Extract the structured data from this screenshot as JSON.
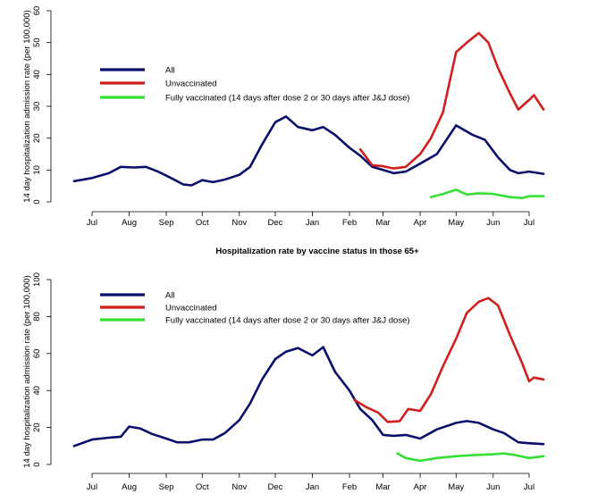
{
  "chart_data": [
    {
      "type": "line",
      "title": "",
      "ylabel": "14 day hospitalization admission rate (per 100,000)",
      "xlabel": "",
      "ylim": [
        0,
        60
      ],
      "yticks": [
        0,
        10,
        20,
        30,
        40,
        50,
        60
      ],
      "xlim": [
        "2020-06-16",
        "2021-07-14"
      ],
      "xticks": [
        {
          "date": "2020-07-01",
          "label": "Jul"
        },
        {
          "date": "2020-08-01",
          "label": "Aug"
        },
        {
          "date": "2020-09-01",
          "label": "Sep"
        },
        {
          "date": "2020-10-01",
          "label": "Oct"
        },
        {
          "date": "2020-11-01",
          "label": "Nov"
        },
        {
          "date": "2020-12-01",
          "label": "Dec"
        },
        {
          "date": "2021-01-01",
          "label": "Jan"
        },
        {
          "date": "2021-02-01",
          "label": "Feb"
        },
        {
          "date": "2021-03-01",
          "label": "Mar"
        },
        {
          "date": "2021-04-01",
          "label": "Apr"
        },
        {
          "date": "2021-05-01",
          "label": "May"
        },
        {
          "date": "2021-06-01",
          "label": "Jun"
        },
        {
          "date": "2021-07-01",
          "label": "Jul"
        }
      ],
      "grid": false,
      "legend_placement": "top-left",
      "series": [
        {
          "name": "All",
          "color": "#0a0f6b",
          "points": [
            [
              "2020-06-16",
              6.5
            ],
            [
              "2020-07-01",
              7.5
            ],
            [
              "2020-07-15",
              9
            ],
            [
              "2020-07-25",
              11
            ],
            [
              "2020-08-05",
              10.8
            ],
            [
              "2020-08-15",
              11
            ],
            [
              "2020-08-25",
              9.5
            ],
            [
              "2020-09-05",
              7.5
            ],
            [
              "2020-09-15",
              5.5
            ],
            [
              "2020-09-22",
              5.2
            ],
            [
              "2020-10-01",
              6.8
            ],
            [
              "2020-10-10",
              6.2
            ],
            [
              "2020-10-20",
              7
            ],
            [
              "2020-11-01",
              8.5
            ],
            [
              "2020-11-10",
              11
            ],
            [
              "2020-11-20",
              18
            ],
            [
              "2020-12-01",
              25
            ],
            [
              "2020-12-10",
              26.8
            ],
            [
              "2020-12-20",
              23.5
            ],
            [
              "2021-01-01",
              22.5
            ],
            [
              "2021-01-10",
              23.5
            ],
            [
              "2021-01-20",
              21
            ],
            [
              "2021-02-01",
              17
            ],
            [
              "2021-02-10",
              14.5
            ],
            [
              "2021-02-20",
              11
            ],
            [
              "2021-03-01",
              10
            ],
            [
              "2021-03-10",
              9
            ],
            [
              "2021-03-20",
              9.5
            ],
            [
              "2021-04-01",
              12
            ],
            [
              "2021-04-15",
              15
            ],
            [
              "2021-05-01",
              24
            ],
            [
              "2021-05-15",
              21
            ],
            [
              "2021-05-25",
              19.5
            ],
            [
              "2021-06-05",
              14
            ],
            [
              "2021-06-15",
              10
            ],
            [
              "2021-06-22",
              9
            ],
            [
              "2021-07-01",
              9.5
            ],
            [
              "2021-07-13",
              8.8
            ]
          ]
        },
        {
          "name": "Unvaccinated",
          "color": "#d11f1f",
          "points": [
            [
              "2021-02-10",
              16.5
            ],
            [
              "2021-02-20",
              11.5
            ],
            [
              "2021-03-01",
              11.2
            ],
            [
              "2021-03-10",
              10.5
            ],
            [
              "2021-03-20",
              11
            ],
            [
              "2021-04-01",
              15
            ],
            [
              "2021-04-10",
              20
            ],
            [
              "2021-04-20",
              28
            ],
            [
              "2021-05-01",
              47
            ],
            [
              "2021-05-10",
              50
            ],
            [
              "2021-05-20",
              53
            ],
            [
              "2021-05-28",
              50
            ],
            [
              "2021-06-05",
              42
            ],
            [
              "2021-06-15",
              34
            ],
            [
              "2021-06-22",
              29
            ],
            [
              "2021-07-01",
              32
            ],
            [
              "2021-07-05",
              33.5
            ],
            [
              "2021-07-13",
              29
            ]
          ]
        },
        {
          "name": "Fully vaccinated (14 days after dose 2 or 30 days after J&J dose)",
          "color": "#33e033",
          "points": [
            [
              "2021-04-10",
              1.5
            ],
            [
              "2021-04-20",
              2.5
            ],
            [
              "2021-05-01",
              3.8
            ],
            [
              "2021-05-10",
              2.3
            ],
            [
              "2021-05-20",
              2.7
            ],
            [
              "2021-06-01",
              2.5
            ],
            [
              "2021-06-15",
              1.5
            ],
            [
              "2021-06-25",
              1.2
            ],
            [
              "2021-07-01",
              1.8
            ],
            [
              "2021-07-13",
              1.8
            ]
          ]
        }
      ]
    },
    {
      "type": "line",
      "title": "Hospitalization rate by vaccine status in those 65+",
      "ylabel": "14 day hospitalization admission rate (per 100,000)",
      "xlabel": "",
      "ylim": [
        0,
        100
      ],
      "yticks": [
        0,
        20,
        40,
        60,
        80,
        100
      ],
      "xlim": [
        "2020-06-16",
        "2021-07-14"
      ],
      "xticks": [
        {
          "date": "2020-07-01",
          "label": "Jul"
        },
        {
          "date": "2020-08-01",
          "label": "Aug"
        },
        {
          "date": "2020-09-01",
          "label": "Sep"
        },
        {
          "date": "2020-10-01",
          "label": "Oct"
        },
        {
          "date": "2020-11-01",
          "label": "Nov"
        },
        {
          "date": "2020-12-01",
          "label": "Dec"
        },
        {
          "date": "2021-01-01",
          "label": "Jan"
        },
        {
          "date": "2021-02-01",
          "label": "Feb"
        },
        {
          "date": "2021-03-01",
          "label": "Mar"
        },
        {
          "date": "2021-04-01",
          "label": "Apr"
        },
        {
          "date": "2021-05-01",
          "label": "May"
        },
        {
          "date": "2021-06-01",
          "label": "Jun"
        },
        {
          "date": "2021-07-01",
          "label": "Jul"
        }
      ],
      "grid": false,
      "legend_placement": "top-left",
      "series": [
        {
          "name": "All",
          "color": "#0a0f6b",
          "points": [
            [
              "2020-06-16",
              10
            ],
            [
              "2020-07-01",
              13.5
            ],
            [
              "2020-07-15",
              14.5
            ],
            [
              "2020-07-25",
              15
            ],
            [
              "2020-08-01",
              20.5
            ],
            [
              "2020-08-10",
              19.5
            ],
            [
              "2020-08-20",
              16.5
            ],
            [
              "2020-09-01",
              14
            ],
            [
              "2020-09-10",
              12
            ],
            [
              "2020-09-20",
              12
            ],
            [
              "2020-10-01",
              13.5
            ],
            [
              "2020-10-10",
              13.5
            ],
            [
              "2020-10-20",
              17
            ],
            [
              "2020-11-01",
              24
            ],
            [
              "2020-11-10",
              33
            ],
            [
              "2020-11-20",
              46
            ],
            [
              "2020-12-01",
              57
            ],
            [
              "2020-12-10",
              61
            ],
            [
              "2020-12-20",
              63
            ],
            [
              "2021-01-01",
              59
            ],
            [
              "2021-01-10",
              63.5
            ],
            [
              "2021-01-20",
              50
            ],
            [
              "2021-02-01",
              40
            ],
            [
              "2021-02-10",
              30
            ],
            [
              "2021-02-20",
              24
            ],
            [
              "2021-03-01",
              16
            ],
            [
              "2021-03-10",
              15.5
            ],
            [
              "2021-03-20",
              16
            ],
            [
              "2021-04-01",
              14
            ],
            [
              "2021-04-15",
              19
            ],
            [
              "2021-05-01",
              22.5
            ],
            [
              "2021-05-10",
              23.5
            ],
            [
              "2021-05-20",
              22.5
            ],
            [
              "2021-06-01",
              19
            ],
            [
              "2021-06-10",
              17
            ],
            [
              "2021-06-22",
              12
            ],
            [
              "2021-07-01",
              11.5
            ],
            [
              "2021-07-13",
              11
            ]
          ]
        },
        {
          "name": "Unvaccinated",
          "color": "#d11f1f",
          "points": [
            [
              "2021-02-05",
              35
            ],
            [
              "2021-02-15",
              31
            ],
            [
              "2021-02-25",
              28
            ],
            [
              "2021-03-05",
              23
            ],
            [
              "2021-03-15",
              23.5
            ],
            [
              "2021-03-22",
              30
            ],
            [
              "2021-04-01",
              29
            ],
            [
              "2021-04-10",
              38
            ],
            [
              "2021-04-20",
              53
            ],
            [
              "2021-05-01",
              68
            ],
            [
              "2021-05-10",
              82
            ],
            [
              "2021-05-20",
              88
            ],
            [
              "2021-05-28",
              90
            ],
            [
              "2021-06-05",
              86
            ],
            [
              "2021-06-15",
              70
            ],
            [
              "2021-06-25",
              55
            ],
            [
              "2021-07-01",
              45
            ],
            [
              "2021-07-05",
              47
            ],
            [
              "2021-07-13",
              46
            ]
          ]
        },
        {
          "name": "Fully vaccinated (14 days after dose 2 or 30 days after J&J dose)",
          "color": "#33e033",
          "points": [
            [
              "2021-03-13",
              6
            ],
            [
              "2021-03-20",
              3.5
            ],
            [
              "2021-04-01",
              2
            ],
            [
              "2021-04-15",
              3.5
            ],
            [
              "2021-05-01",
              4.5
            ],
            [
              "2021-05-15",
              5
            ],
            [
              "2021-06-01",
              5.5
            ],
            [
              "2021-06-10",
              6
            ],
            [
              "2021-06-20",
              5
            ],
            [
              "2021-07-01",
              3.5
            ],
            [
              "2021-07-13",
              4.5
            ]
          ]
        }
      ]
    }
  ]
}
